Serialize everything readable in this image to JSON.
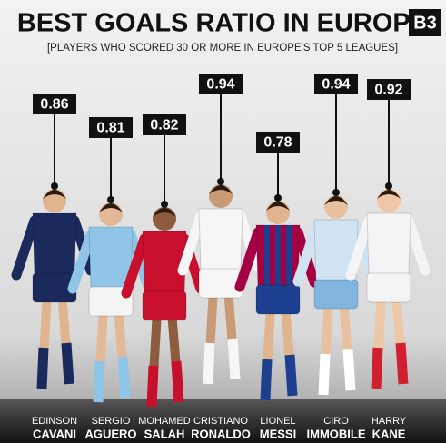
{
  "chart_data": {
    "type": "lollipop",
    "title": "BEST GOALS RATIO IN EUROPE",
    "subtitle": "[PLAYERS WHO SCORED 30 OR MORE IN EUROPE'S TOP 5 LEAGUES]",
    "logo": "B3",
    "first_names": [
      "EDINSON",
      "SERGIO",
      "MOHAMED",
      "CRISTIANO",
      "LIONEL",
      "CIRO",
      "HARRY"
    ],
    "last_names": [
      "CAVANI",
      "AGUERO",
      "SALAH",
      "RONALDO",
      "MESSI",
      "IMMOBILE",
      "KANE"
    ],
    "values": [
      0.86,
      0.81,
      0.82,
      0.94,
      0.78,
      0.94,
      0.92
    ]
  }
}
